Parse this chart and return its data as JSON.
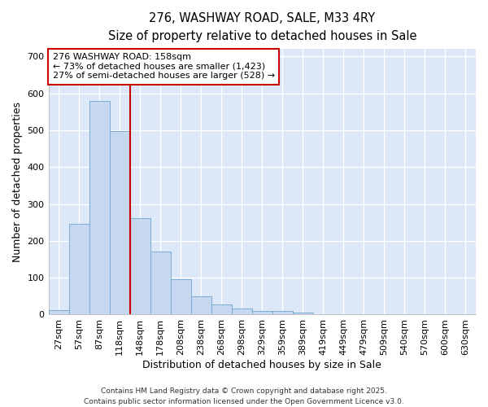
{
  "title_line1": "276, WASHWAY ROAD, SALE, M33 4RY",
  "title_line2": "Size of property relative to detached houses in Sale",
  "xlabel": "Distribution of detached houses by size in Sale",
  "ylabel": "Number of detached properties",
  "categories": [
    "27sqm",
    "57sqm",
    "87sqm",
    "118sqm",
    "148sqm",
    "178sqm",
    "208sqm",
    "238sqm",
    "268sqm",
    "298sqm",
    "329sqm",
    "359sqm",
    "389sqm",
    "419sqm",
    "449sqm",
    "479sqm",
    "509sqm",
    "540sqm",
    "570sqm",
    "600sqm",
    "630sqm"
  ],
  "values": [
    12,
    247,
    580,
    497,
    262,
    172,
    95,
    50,
    27,
    17,
    10,
    9,
    5,
    0,
    0,
    0,
    0,
    0,
    0,
    0,
    0
  ],
  "bar_color": "#c5d8f0",
  "bar_edge_color": "#7aadd4",
  "vline_color": "#cc0000",
  "annotation_text": "276 WASHWAY ROAD: 158sqm\n← 73% of detached houses are smaller (1,423)\n27% of semi-detached houses are larger (528) →",
  "annotation_box_color": "#ffffff",
  "annotation_box_edge_color": "#cc0000",
  "ylim": [
    0,
    720
  ],
  "yticks": [
    0,
    100,
    200,
    300,
    400,
    500,
    600,
    700
  ],
  "background_color": "#ffffff",
  "plot_bg_color": "#dce8f8",
  "grid_color": "#ffffff",
  "footer_line1": "Contains HM Land Registry data © Crown copyright and database right 2025.",
  "footer_line2": "Contains public sector information licensed under the Open Government Licence v3.0.",
  "title_fontsize": 10.5,
  "subtitle_fontsize": 9.5,
  "axis_label_fontsize": 9,
  "tick_fontsize": 8,
  "annotation_fontsize": 8,
  "footer_fontsize": 6.5
}
